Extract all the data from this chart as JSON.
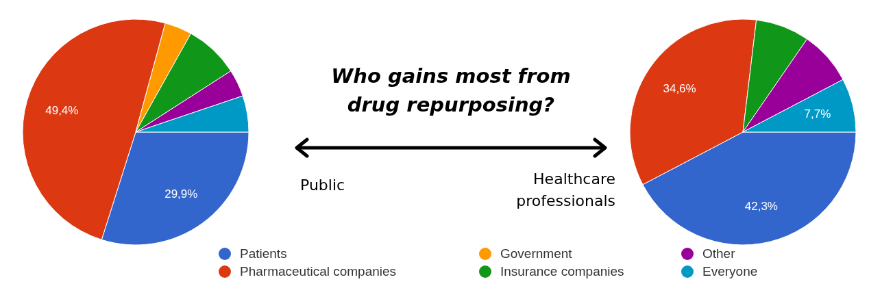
{
  "chart_data": [
    {
      "type": "pie",
      "categories": [
        "Patients",
        "Pharmaceutical companies",
        "Government",
        "Insurance companies",
        "Other",
        "Everyone"
      ],
      "values": [
        29.9,
        49.4,
        3.9,
        7.8,
        3.9,
        5.2
      ],
      "colors": [
        "#3366cc",
        "#dc3912",
        "#ff9900",
        "#109618",
        "#990099",
        "#0099c6"
      ],
      "value_labels": [
        "29,9%",
        "49,4%",
        null,
        null,
        null,
        null
      ],
      "legend": "bottom"
    },
    {
      "type": "other",
      "title": "Who gains most from drug repurposing?",
      "annotations": [
        "Public",
        "Healthcare professionals"
      ]
    },
    {
      "type": "pie",
      "categories": [
        null,
        null,
        null,
        null,
        null
      ],
      "values": [
        42.3,
        34.6,
        7.7,
        7.7,
        7.7
      ],
      "colors": [
        "#3366cc",
        "#dc3912",
        "#109618",
        "#990099",
        "#0099c6"
      ],
      "value_labels": [
        "42,3%",
        "34,6%",
        null,
        null,
        "7,7%"
      ]
    }
  ]
}
